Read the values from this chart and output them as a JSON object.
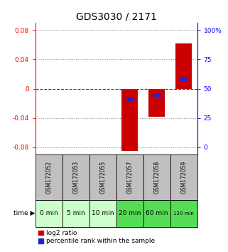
{
  "title": "GDS3030 / 2171",
  "samples": [
    "GSM172052",
    "GSM172053",
    "GSM172055",
    "GSM172057",
    "GSM172058",
    "GSM172059"
  ],
  "time_labels": [
    "0 min",
    "5 min",
    "10 min",
    "20 min",
    "60 min",
    "120 min"
  ],
  "log2_ratio": [
    0.0,
    0.0,
    0.0,
    -0.085,
    -0.038,
    0.062
  ],
  "percentile": [
    50.0,
    50.0,
    50.0,
    42.0,
    45.0,
    57.0
  ],
  "show_percentile": [
    false,
    false,
    false,
    true,
    true,
    true
  ],
  "ylim": [
    -0.09,
    0.09
  ],
  "yticks_left": [
    -0.08,
    -0.04,
    0.0,
    0.04,
    0.08
  ],
  "yticks_right_vals": [
    0,
    25,
    50,
    75,
    100
  ],
  "yticks_right_labels": [
    "0",
    "25",
    "50",
    "75",
    "100%"
  ],
  "bar_color": "#cc0000",
  "blue_color": "#2222cc",
  "background_color": "#ffffff",
  "grid_color": "#000000",
  "zero_line_color": "#cc0000",
  "sample_bg": "#c0c0c0",
  "time_bg_light": "#ccffcc",
  "time_bg_dark": "#55dd55",
  "title_fontsize": 10,
  "tick_fontsize": 6.5,
  "sample_fontsize": 5.5,
  "time_fontsize": 6.5,
  "legend_fontsize": 6.5
}
